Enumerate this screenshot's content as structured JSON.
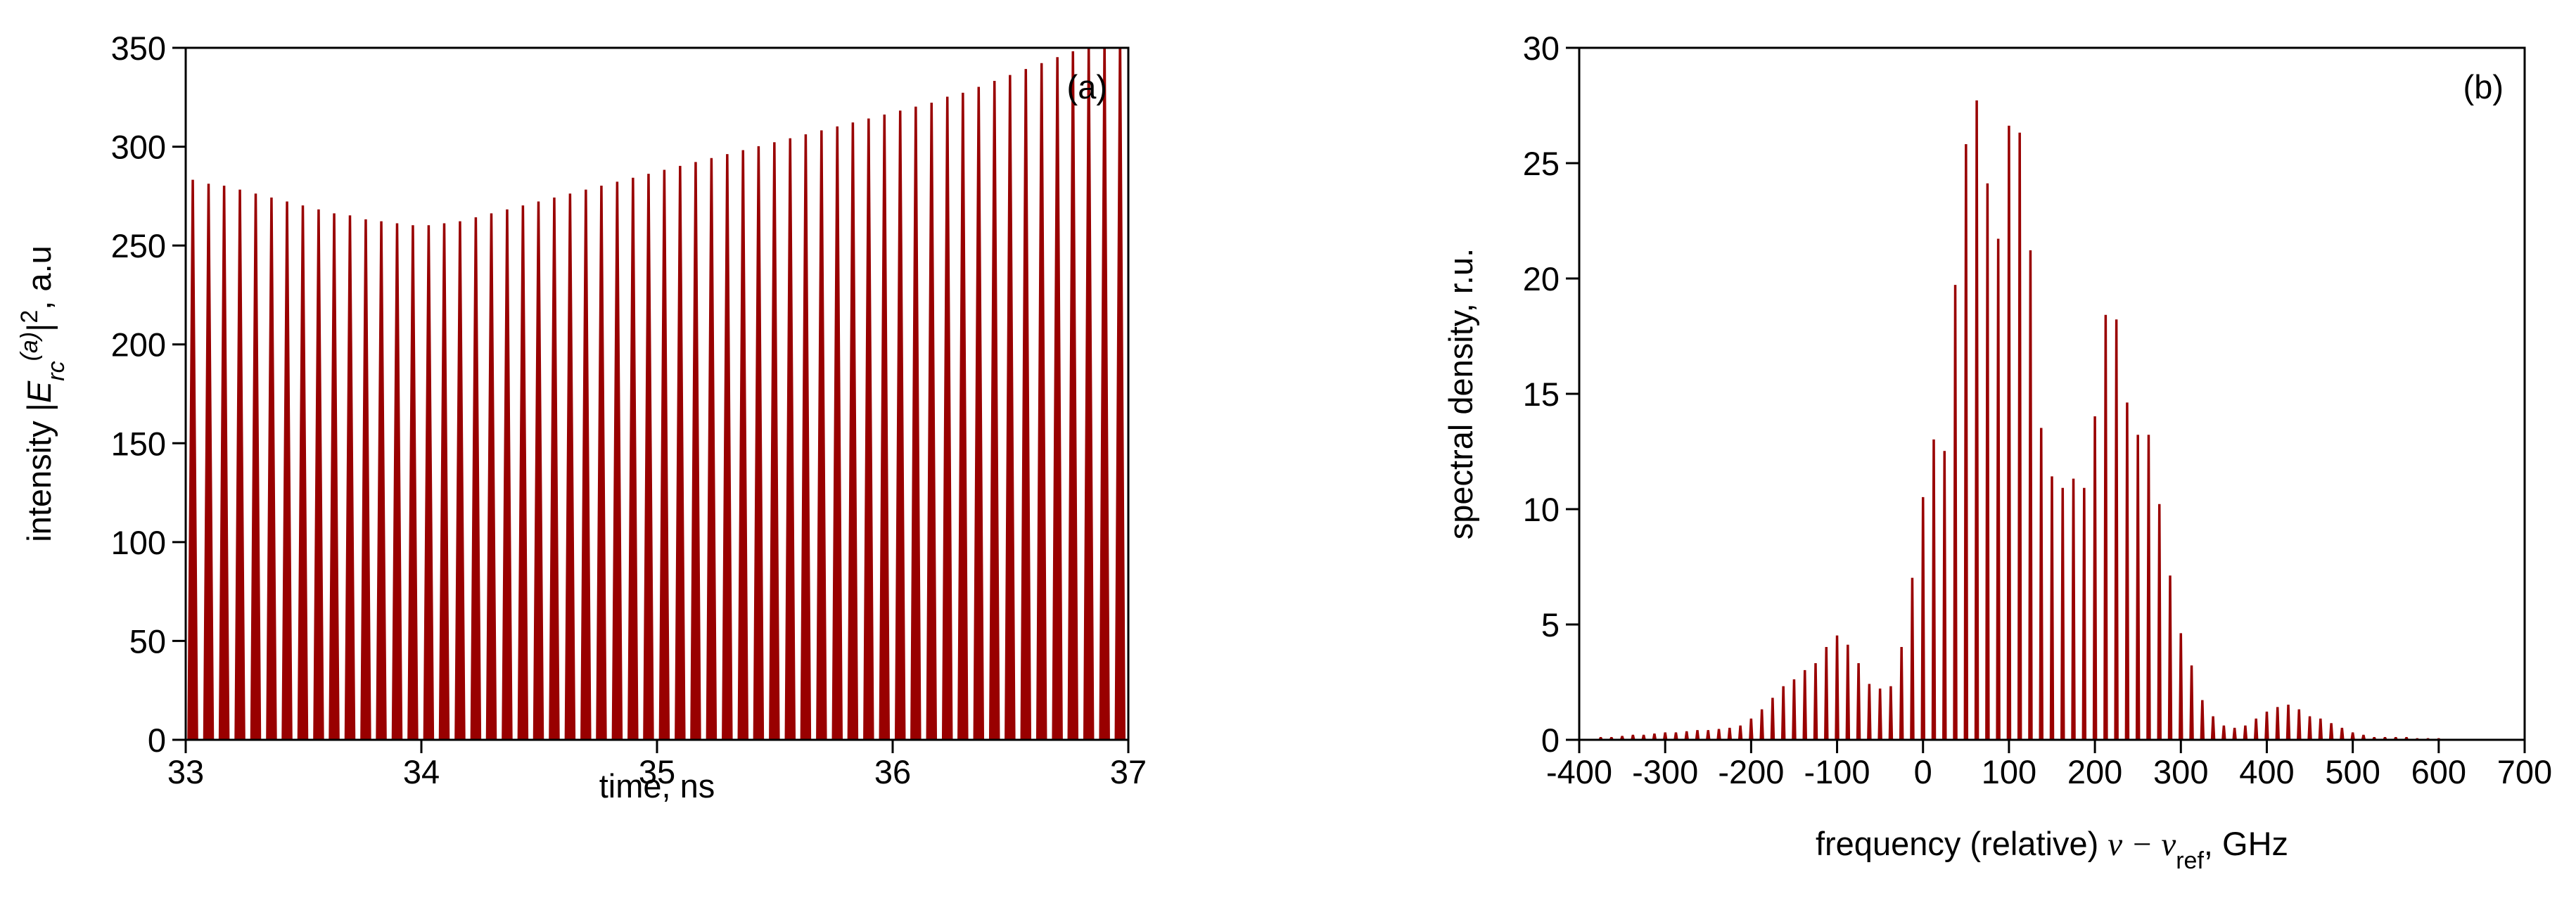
{
  "chart_data": [
    {
      "type": "spikes",
      "panel_label": "(a)",
      "xlabel": "time, ns",
      "ylabel_parts": [
        "intensity |",
        "E",
        "rc",
        "(a)",
        "|",
        "2",
        ", a.u"
      ],
      "color": "#990000",
      "x": [
        33.03,
        33.097,
        33.163,
        33.23,
        33.297,
        33.364,
        33.43,
        33.497,
        33.564,
        33.63,
        33.697,
        33.764,
        33.83,
        33.897,
        33.964,
        34.031,
        34.097,
        34.164,
        34.231,
        34.297,
        34.364,
        34.431,
        34.497,
        34.564,
        34.631,
        34.698,
        34.764,
        34.831,
        34.898,
        34.964,
        35.031,
        35.098,
        35.164,
        35.231,
        35.298,
        35.365,
        35.431,
        35.498,
        35.565,
        35.631,
        35.698,
        35.765,
        35.831,
        35.898,
        35.965,
        36.032,
        36.098,
        36.165,
        36.232,
        36.298,
        36.365,
        36.432,
        36.498,
        36.565,
        36.632,
        36.699,
        36.765,
        36.832,
        36.899,
        36.965
      ],
      "values": [
        283,
        281,
        280,
        278,
        276,
        274,
        272,
        270,
        268,
        266,
        265,
        263,
        262,
        261,
        260,
        260,
        261,
        262,
        264,
        266,
        268,
        270,
        272,
        274,
        276,
        278,
        280,
        282,
        284,
        286,
        288,
        290,
        292,
        294,
        296,
        298,
        300,
        302,
        304,
        306,
        308,
        310,
        312,
        314,
        316,
        318,
        320,
        322,
        325,
        327,
        330,
        333,
        336,
        339,
        342,
        345,
        348,
        351,
        354,
        357
      ],
      "xlim": [
        33,
        37
      ],
      "xticks": [
        33,
        34,
        35,
        36,
        37
      ],
      "ylim": [
        0,
        350
      ],
      "yticks": [
        0,
        50,
        100,
        150,
        200,
        250,
        300,
        350
      ]
    },
    {
      "type": "spikes",
      "panel_label": "(b)",
      "ylabel": "spectral density, r.u.",
      "xlabel_parts": [
        "frequency (relative) ",
        "ν − ν",
        "ref",
        ", GHz"
      ],
      "color": "#990000",
      "x": [
        -375,
        -362.5,
        -350,
        -337.5,
        -325,
        -312.5,
        -300,
        -287.5,
        -275,
        -262.5,
        -250,
        -237.5,
        -225,
        -212.5,
        -200,
        -187.5,
        -175,
        -162.5,
        -150,
        -137.5,
        -125,
        -112.5,
        -100,
        -87.5,
        -75,
        -62.5,
        -50,
        -37.5,
        -25,
        -12.5,
        0,
        12.5,
        25,
        37.5,
        50,
        62.5,
        75,
        87.5,
        100,
        112.5,
        125,
        137.5,
        150,
        162.5,
        175,
        187.5,
        200,
        212.5,
        225,
        237.5,
        250,
        262.5,
        275,
        287.5,
        300,
        312.5,
        325,
        337.5,
        350,
        362.5,
        375,
        387.5,
        400,
        412.5,
        425,
        437.5,
        450,
        462.5,
        475,
        487.5,
        500,
        512.5,
        525,
        537.5,
        550,
        562.5,
        575,
        587.5,
        600
      ],
      "values": [
        0.1,
        0.1,
        0.15,
        0.2,
        0.2,
        0.25,
        0.3,
        0.3,
        0.35,
        0.4,
        0.4,
        0.45,
        0.5,
        0.6,
        0.9,
        1.3,
        1.8,
        2.3,
        2.6,
        3.0,
        3.3,
        4.0,
        4.5,
        4.1,
        3.3,
        2.4,
        2.2,
        2.3,
        4.0,
        7.0,
        10.5,
        13,
        12.5,
        19.7,
        25.8,
        27.7,
        24.1,
        21.7,
        26.6,
        26.3,
        21.2,
        13.5,
        11.4,
        10.9,
        11.3,
        10.9,
        14,
        18.4,
        18.2,
        14.6,
        13.2,
        13.2,
        10.2,
        7.1,
        4.6,
        3.2,
        1.7,
        1.0,
        0.6,
        0.5,
        0.6,
        0.9,
        1.2,
        1.4,
        1.5,
        1.3,
        1.0,
        0.9,
        0.7,
        0.5,
        0.3,
        0.2,
        0.1,
        0.1,
        0.1,
        0.1,
        0.05,
        0.05,
        0.05
      ],
      "xlim": [
        -400,
        700
      ],
      "xticks": [
        -400,
        -300,
        -200,
        -100,
        0,
        100,
        200,
        300,
        400,
        500,
        600,
        700
      ],
      "ylim": [
        0,
        30
      ],
      "yticks": [
        0,
        5,
        10,
        15,
        20,
        25,
        30
      ]
    }
  ]
}
